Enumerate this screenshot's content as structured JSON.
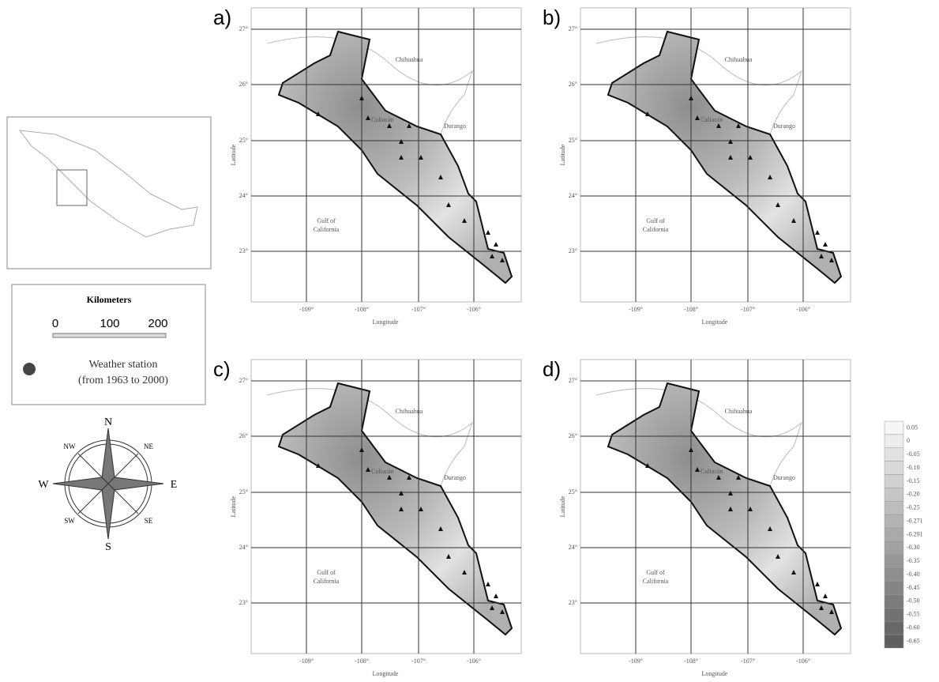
{
  "panels": [
    {
      "label": "a)"
    },
    {
      "label": "b)"
    },
    {
      "label": "c)"
    },
    {
      "label": "d)"
    }
  ],
  "map": {
    "lat_ticks": [
      "27°",
      "26°",
      "25°",
      "24°",
      "23°"
    ],
    "lon_ticks": [
      "-109°",
      "-108°",
      "-107°",
      "-106°"
    ],
    "y_axis_label": "Latitude",
    "x_axis_label": "Longitude",
    "sea_label": [
      "Gulf of",
      "California"
    ],
    "north_state": "Chihuahua",
    "east_state": "Durango",
    "city": "Culiacán"
  },
  "scale": {
    "title": "Kilometers",
    "ticks": [
      "0",
      "100",
      "200"
    ],
    "station_label": [
      "Weather station",
      "(from 1963 to 2000)"
    ]
  },
  "compass": {
    "n": "N",
    "s": "S",
    "e": "E",
    "w": "W",
    "ne": "NE",
    "nw": "NW",
    "se": "SE",
    "sw": "SW"
  },
  "colorbar": {
    "labels": [
      "0.05",
      "0",
      "-0.05",
      "-0.10",
      "-0.15",
      "-0.20",
      "-0.25",
      "-0.271",
      "-0.291",
      "-0.30",
      "-0.35",
      "-0.40",
      "-0.45",
      "-0.50",
      "-0.55",
      "-0.60",
      "-0.65"
    ]
  }
}
